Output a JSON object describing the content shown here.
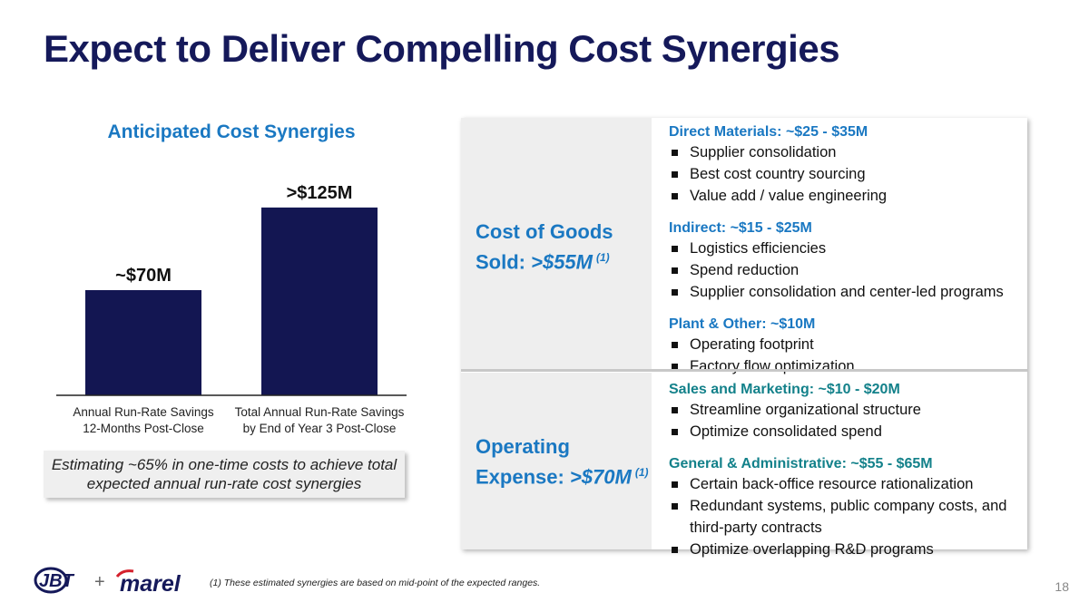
{
  "title": "Expect to Deliver Compelling Cost Synergies",
  "chart_data": {
    "type": "bar",
    "title": "Anticipated Cost Synergies",
    "categories": [
      [
        "Annual Run-Rate Savings",
        "12-Months Post-Close"
      ],
      [
        "Total Annual Run-Rate Savings",
        "by End of Year 3 Post-Close"
      ]
    ],
    "values": [
      70,
      125
    ],
    "data_labels": [
      "~$70M",
      ">$125M"
    ],
    "unit": "$M",
    "ylim": [
      0,
      140
    ],
    "grid": false,
    "color": "#131652"
  },
  "note_box": "Estimating ~65% in one-time costs to achieve total expected annual run-rate cost synergies",
  "panel": {
    "cogs": {
      "label_line1": "Cost of Goods",
      "label_line2_prefix": "Sold: ",
      "label_value": ">$55M",
      "label_sup": "(1)",
      "groups": [
        {
          "heading": "Direct Materials: ~$25 - $35M",
          "items": [
            "Supplier consolidation",
            "Best cost country sourcing",
            "Value add / value engineering"
          ]
        },
        {
          "heading": "Indirect: ~$15 - $25M",
          "items": [
            "Logistics efficiencies",
            "Spend reduction",
            "Supplier consolidation and center-led programs"
          ]
        },
        {
          "heading": "Plant & Other: ~$10M",
          "items": [
            "Operating footprint",
            "Factory flow optimization"
          ]
        }
      ]
    },
    "opex": {
      "label_line1": "Operating",
      "label_line2_prefix": "Expense: ",
      "label_value": ">$70M",
      "label_sup": "(1)",
      "groups": [
        {
          "heading": "Sales and Marketing: ~$10 - $20M",
          "items": [
            "Streamline organizational structure",
            "Optimize consolidated spend"
          ]
        },
        {
          "heading": "General & Administrative: ~$55 - $65M",
          "items": [
            "Certain back-office resource rationalization",
            "Redundant systems, public company costs, and third-party contracts",
            "Optimize overlapping R&D programs"
          ]
        }
      ]
    }
  },
  "footer": {
    "logo1": "JBT",
    "plus": "+",
    "logo2": "marel",
    "note": "(1) These estimated synergies are based on mid-point of the expected ranges.",
    "page_number": "18"
  }
}
